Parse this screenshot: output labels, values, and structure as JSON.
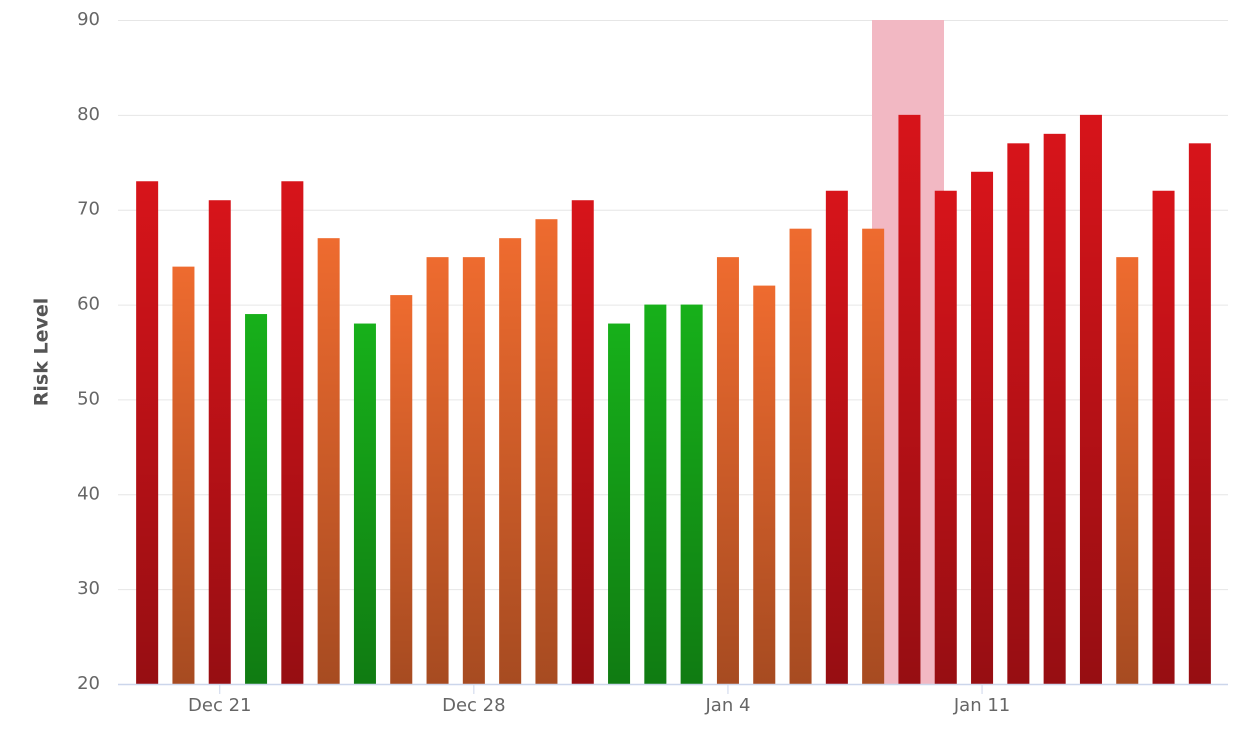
{
  "chart_data": {
    "type": "bar",
    "y_axis_label": "Risk Level",
    "categories": [
      null,
      null,
      "Dec 21",
      null,
      null,
      null,
      null,
      null,
      null,
      "Dec 28",
      null,
      null,
      null,
      null,
      null,
      null,
      "Jan 4",
      null,
      null,
      null,
      null,
      null,
      null,
      "Jan 11",
      null,
      null,
      null,
      null,
      null,
      null
    ],
    "values": [
      73,
      64,
      71,
      59,
      73,
      67,
      58,
      61,
      65,
      65,
      67,
      69,
      71,
      58,
      60,
      60,
      65,
      62,
      68,
      72,
      68,
      80,
      72,
      74,
      77,
      78,
      80,
      65,
      72,
      77
    ],
    "colors": [
      "#d7141a",
      "#ee6b2f",
      "#d7141a",
      "#17b01a",
      "#d7141a",
      "#ee6b2f",
      "#17b01a",
      "#ee6b2f",
      "#ee6b2f",
      "#ee6b2f",
      "#ee6b2f",
      "#ee6b2f",
      "#d7141a",
      "#17b01a",
      "#17b01a",
      "#17b01a",
      "#ee6b2f",
      "#ee6b2f",
      "#ee6b2f",
      "#d7141a",
      "#ee6b2f",
      "#d7141a",
      "#d7141a",
      "#d7141a",
      "#d7141a",
      "#d7141a",
      "#d7141a",
      "#ee6b2f",
      "#d7141a",
      "#d7141a"
    ],
    "ylim": [
      20,
      90
    ],
    "yticks": [
      20,
      30,
      40,
      50,
      60,
      70,
      80,
      90
    ],
    "grid": true
  }
}
